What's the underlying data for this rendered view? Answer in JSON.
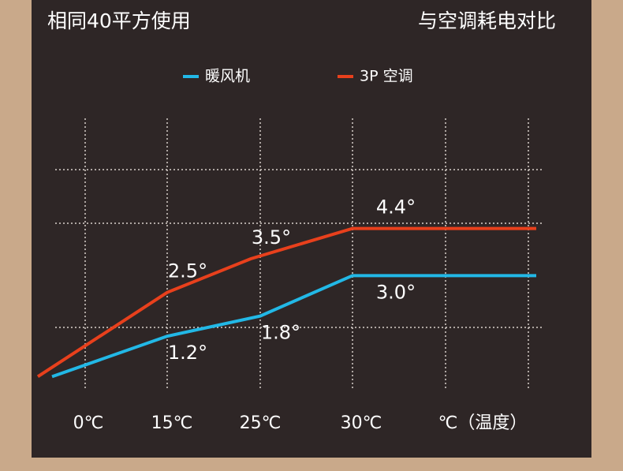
{
  "chart_data": {
    "type": "line",
    "title": "相同40平方使用",
    "subtitle": "与空调耗电对比",
    "categories": [
      "0℃",
      "15℃",
      "25℃",
      "30℃",
      "℃（温度）"
    ],
    "series": [
      {
        "name": "暖风机",
        "color": "#22b8e6",
        "values": [
          0,
          1.2,
          1.8,
          3.0,
          3.0
        ],
        "value_labels": [
          null,
          "1.2°",
          "1.8°",
          "3.0°",
          null
        ]
      },
      {
        "name": "3P 空调",
        "color": "#e8401c",
        "values": [
          0,
          2.5,
          3.5,
          4.4,
          4.4
        ],
        "value_labels": [
          null,
          "2.5°",
          "3.5°",
          "4.4°",
          null
        ]
      }
    ],
    "ylim": [
      -1,
      6.5
    ],
    "grid": true
  }
}
